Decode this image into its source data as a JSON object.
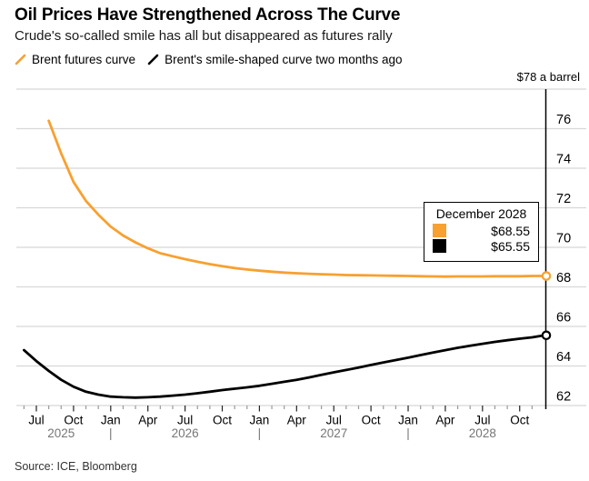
{
  "header": {
    "title": "Oil Prices Have Strengthened Across The Curve",
    "subtitle": "Crude's so-called smile has all but disappeared as futures rally"
  },
  "legend": [
    {
      "icon": "orange-slash-icon",
      "label": "Brent futures curve",
      "color": "#F8A030"
    },
    {
      "icon": "black-slash-icon",
      "label": "Brent's smile-shaped curve two months ago",
      "color": "#000000"
    }
  ],
  "tooltip": {
    "title": "December 2028",
    "rows": [
      {
        "swatch_color": "#F8A030",
        "value": "$68.55"
      },
      {
        "swatch_color": "#000000",
        "value": "$65.55"
      }
    ]
  },
  "source": "Source: ICE, Bloomberg",
  "chart_data": {
    "type": "line",
    "title": "Oil Prices Have Strengthened Across The Curve",
    "unit_label": "$78 a barrel",
    "grid": true,
    "colors": {
      "gridline": "#D8D8D8",
      "axis": "#000000",
      "major_tick": "#222222",
      "minor_tick": "#999999",
      "year_text": "#767676"
    },
    "y_axis": {
      "top_value": 78,
      "ticks": [
        76,
        74,
        72,
        70,
        68,
        66,
        64,
        62
      ],
      "min": 61,
      "max": 78
    },
    "x_axis": {
      "start_label_month": "Jul 2025",
      "end_month": "Dec 2028",
      "month_labels": [
        "Jul",
        "Oct",
        "Jan",
        "Apr",
        "Jul",
        "Oct",
        "Jan",
        "Apr",
        "Jul",
        "Oct",
        "Jan",
        "Apr",
        "Jul",
        "Oct"
      ],
      "major_tick_months": [
        0,
        3,
        6,
        9,
        12,
        15,
        18,
        21,
        24,
        27,
        30,
        33,
        36,
        39
      ],
      "minor_tick_month_range": [
        -1,
        40
      ],
      "year_labels": [
        "2025",
        "2026",
        "2027",
        "2028"
      ],
      "year_label_months": [
        2,
        12,
        24,
        36
      ],
      "year_separator": "|",
      "year_separator_months": [
        6,
        18,
        30
      ]
    },
    "series": [
      {
        "name": "Brent futures curve",
        "color": "#F8A030",
        "stroke_width": 2.8,
        "start_offset_months": 1,
        "end_label": "December 2028",
        "end_value": 68.55,
        "values": [
          76.4,
          74.75,
          73.3,
          72.35,
          71.65,
          71.05,
          70.6,
          70.25,
          69.95,
          69.7,
          69.55,
          69.4,
          69.27,
          69.15,
          69.05,
          68.95,
          68.88,
          68.82,
          68.77,
          68.72,
          68.69,
          68.66,
          68.64,
          68.62,
          68.6,
          68.59,
          68.58,
          68.57,
          68.56,
          68.55,
          68.54,
          68.53,
          68.52,
          68.53,
          68.53,
          68.53,
          68.54,
          68.54,
          68.54,
          68.55,
          68.55
        ]
      },
      {
        "name": "Brent's smile-shaped curve two months ago",
        "color": "#000000",
        "stroke_width": 2.8,
        "start_offset_months": -1,
        "end_label": "December 2028",
        "end_value": 65.55,
        "values": [
          64.8,
          64.25,
          63.75,
          63.3,
          62.95,
          62.7,
          62.55,
          62.45,
          62.42,
          62.4,
          62.42,
          62.45,
          62.5,
          62.55,
          62.62,
          62.7,
          62.78,
          62.85,
          62.92,
          63.0,
          63.1,
          63.2,
          63.3,
          63.42,
          63.55,
          63.68,
          63.8,
          63.92,
          64.05,
          64.18,
          64.3,
          64.42,
          64.55,
          64.68,
          64.8,
          64.92,
          65.02,
          65.12,
          65.22,
          65.3,
          65.38,
          65.45,
          65.55
        ]
      }
    ]
  }
}
